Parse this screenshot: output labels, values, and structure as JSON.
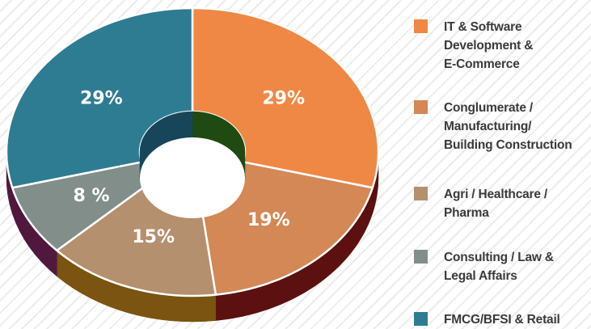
{
  "chart_data": {
    "type": "pie",
    "style": "3d-donut",
    "slices": [
      {
        "label": "IT & Software Development & E-Commerce",
        "label_lines": [
          "IT & Software",
          "Development &",
          "E-Commerce"
        ],
        "value": 29,
        "display": "29%",
        "color": "#ef8845",
        "side_color": "#5c1010"
      },
      {
        "label": "Conglumerate / Manufacturing/ Building Construction",
        "label_lines": [
          "Conglumerate /",
          "Manufacturing/",
          "Building Construction"
        ],
        "value": 19,
        "display": "19%",
        "color": "#d38856",
        "side_color": "#5c1010"
      },
      {
        "label": "Agri / Healthcare / Pharma",
        "label_lines": [
          "Agri / Healthcare /",
          "Pharma"
        ],
        "value": 15,
        "display": "15%",
        "color": "#b5906f",
        "side_color": "#7a5410"
      },
      {
        "label": "Consulting / Law & Legal Affairs",
        "label_lines": [
          "Consulting / Law &",
          "Legal Affairs"
        ],
        "value": 8,
        "display": "8 %",
        "color": "#818e89",
        "side_color": "#50183c"
      },
      {
        "label": "FMCG/BFSI & Retail",
        "label_lines": [
          "FMCG/BFSI & Retail"
        ],
        "value": 29,
        "display": "29%",
        "color": "#2e7c92",
        "side_color": "#50183c"
      }
    ],
    "legend_position": "right"
  }
}
